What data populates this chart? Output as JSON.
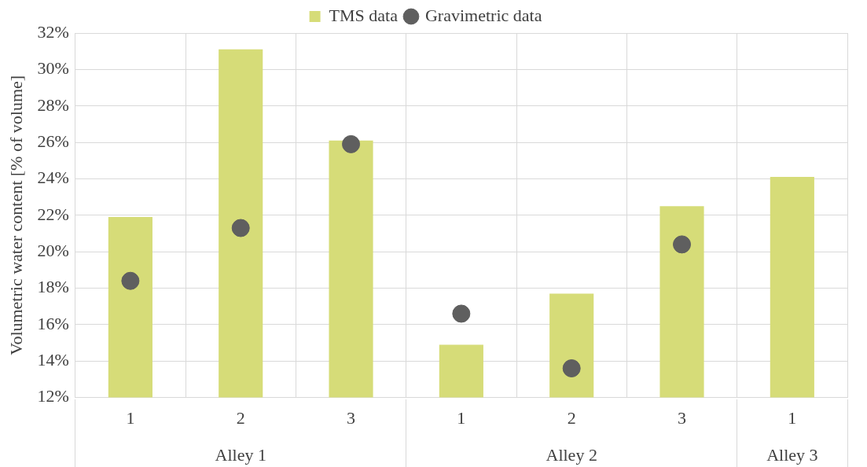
{
  "chart_data": {
    "type": "bar",
    "ylabel": "Volumetric water content [% of volume]",
    "categories": [
      "1",
      "2",
      "3",
      "1",
      "2",
      "3",
      "1"
    ],
    "series": [
      {
        "name": "TMS data",
        "color": "#d6dc78",
        "values": [
          21.9,
          31.1,
          26.1,
          14.9,
          17.7,
          22.5,
          24.1
        ]
      },
      {
        "name": "Gravimetric data",
        "type": "scatter",
        "color": "#5f5f5f",
        "values": [
          18.4,
          21.3,
          25.9,
          16.6,
          13.6,
          20.4,
          null
        ]
      }
    ],
    "ylim": [
      12,
      32
    ],
    "yticks": [
      {
        "value": 12,
        "label": "12%"
      },
      {
        "value": 14,
        "label": "14%"
      },
      {
        "value": 16,
        "label": "16%"
      },
      {
        "value": 18,
        "label": "18%"
      },
      {
        "value": 20,
        "label": "20%"
      },
      {
        "value": 22,
        "label": "22%"
      },
      {
        "value": 24,
        "label": "24%"
      },
      {
        "value": 26,
        "label": "26%"
      },
      {
        "value": 28,
        "label": "28%"
      },
      {
        "value": 30,
        "label": "30%"
      },
      {
        "value": 32,
        "label": "32%"
      }
    ],
    "annotations": [
      "Alley 1",
      "Alley 2",
      "Alley 3"
    ],
    "grid": true,
    "legend": "top",
    "marker": "circle"
  }
}
